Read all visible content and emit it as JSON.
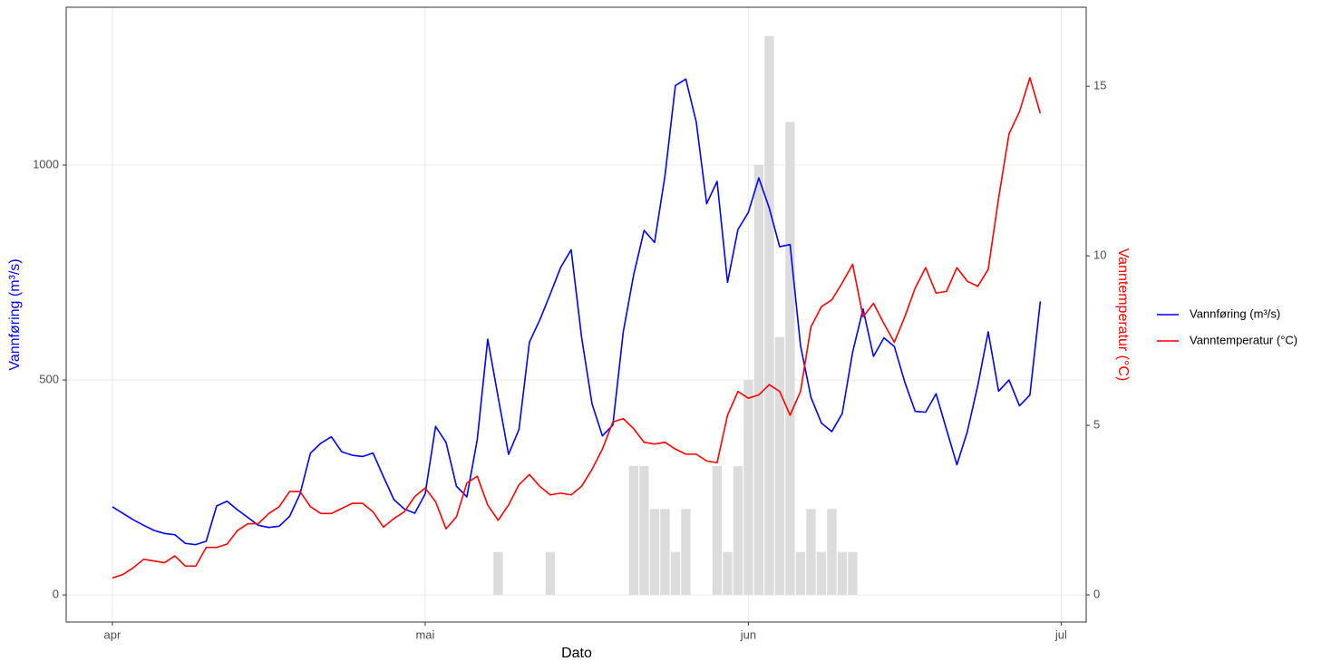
{
  "chart_data": {
    "type": "line",
    "x_label": "Dato",
    "y_label": "Vannføring (m³/s)",
    "y2_label": "Vanntemperatur (°C)",
    "x": [
      0,
      1,
      2,
      3,
      4,
      5,
      6,
      7,
      8,
      9,
      10,
      11,
      12,
      13,
      14,
      15,
      16,
      17,
      18,
      19,
      20,
      21,
      22,
      23,
      24,
      25,
      26,
      27,
      28,
      29,
      30,
      31,
      32,
      33,
      34,
      35,
      36,
      37,
      38,
      39,
      40,
      41,
      42,
      43,
      44,
      45,
      46,
      47,
      48,
      49,
      50,
      51,
      52,
      53,
      54,
      55,
      56,
      57,
      58,
      59,
      60,
      61,
      62,
      63,
      64,
      65,
      66,
      67,
      68,
      69,
      70,
      71,
      72,
      73,
      74,
      75,
      76,
      77,
      78,
      79,
      80,
      81,
      82,
      83,
      84,
      85,
      86,
      87,
      88,
      89
    ],
    "xlim": [
      -4.43,
      93.4
    ],
    "xticks": [
      {
        "value": 0,
        "label": "apr"
      },
      {
        "value": 30,
        "label": "mai"
      },
      {
        "value": 61,
        "label": "jun"
      },
      {
        "value": 91,
        "label": "jul"
      }
    ],
    "ylim": [
      -63,
      1367
    ],
    "yticks": [
      0,
      500,
      1000
    ],
    "y2lim": [
      -0.8,
      17.33
    ],
    "y2ticks": [
      0,
      5,
      10,
      15
    ],
    "grid": true,
    "series": [
      {
        "type": "bar",
        "color": "#dcdcdc",
        "values": [
          null,
          null,
          null,
          null,
          null,
          null,
          null,
          null,
          null,
          null,
          null,
          null,
          null,
          null,
          null,
          null,
          null,
          null,
          null,
          null,
          null,
          null,
          null,
          null,
          null,
          null,
          null,
          null,
          null,
          null,
          null,
          null,
          null,
          null,
          null,
          null,
          null,
          100,
          null,
          null,
          null,
          null,
          100,
          null,
          null,
          null,
          null,
          null,
          null,
          null,
          300,
          300,
          200,
          200,
          100,
          200,
          null,
          null,
          300,
          100,
          300,
          500,
          1000,
          1300,
          600,
          1100,
          100,
          200,
          100,
          200,
          100,
          100,
          null,
          null,
          null,
          null,
          null,
          null,
          null,
          null,
          null,
          null,
          null,
          null,
          null,
          null,
          null,
          null,
          null,
          null
        ]
      },
      {
        "name": "Vannføring (m³/s)",
        "color": "#0000ff",
        "values": [
          205,
          190,
          175,
          162,
          150,
          143,
          140,
          120,
          117,
          125,
          207,
          218,
          198,
          180,
          162,
          157,
          160,
          183,
          235,
          330,
          353,
          368,
          333,
          325,
          322,
          330,
          275,
          222,
          200,
          190,
          235,
          392,
          355,
          253,
          228,
          362,
          595,
          460,
          327,
          385,
          588,
          640,
          700,
          762,
          803,
          600,
          445,
          370,
          395,
          612,
          745,
          848,
          820,
          975,
          1185,
          1200,
          1100,
          910,
          962,
          727,
          850,
          890,
          970,
          900,
          810,
          815,
          580,
          460,
          400,
          380,
          422,
          565,
          665,
          555,
          598,
          578,
          495,
          427,
          425,
          468,
          385,
          303,
          380,
          487,
          612,
          474,
          500,
          440,
          465,
          683
        ]
      },
      {
        "name": "Vanntemperatur (°C)",
        "color": "#ff0000",
        "axis": "y2",
        "values": [
          0.5,
          0.6,
          0.8,
          1.05,
          1.0,
          0.95,
          1.15,
          0.85,
          0.85,
          1.4,
          1.4,
          1.5,
          1.9,
          2.1,
          2.1,
          2.4,
          2.6,
          3.05,
          3.05,
          2.6,
          2.4,
          2.4,
          2.55,
          2.7,
          2.7,
          2.45,
          2.0,
          2.25,
          2.45,
          2.9,
          3.15,
          2.75,
          1.95,
          2.3,
          3.3,
          3.5,
          2.65,
          2.2,
          2.65,
          3.25,
          3.55,
          3.2,
          2.95,
          3.0,
          2.95,
          3.2,
          3.7,
          4.3,
          5.1,
          5.2,
          4.9,
          4.5,
          4.45,
          4.5,
          4.3,
          4.15,
          4.15,
          3.95,
          3.9,
          5.3,
          6.0,
          5.8,
          5.9,
          6.2,
          6.0,
          5.3,
          6.0,
          7.9,
          8.5,
          8.7,
          9.2,
          9.75,
          8.2,
          8.6,
          8.0,
          7.45,
          8.2,
          9.05,
          9.65,
          8.9,
          8.95,
          9.65,
          9.25,
          9.1,
          9.6,
          11.7,
          13.6,
          14.25,
          15.25,
          14.2
        ]
      }
    ]
  }
}
